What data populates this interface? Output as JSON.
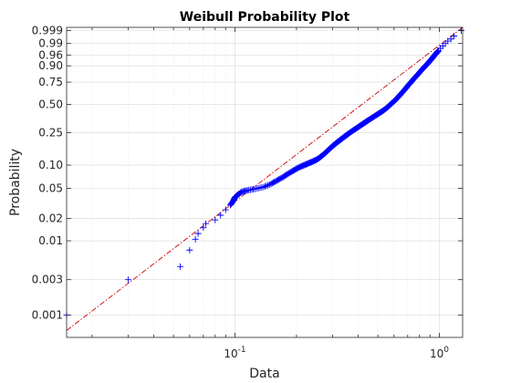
{
  "chart_data": {
    "type": "scatter",
    "title": "Weibull Probability Plot",
    "xlabel": "Data",
    "ylabel": "Probability",
    "x_scale": "log",
    "y_scale": "weibull",
    "xlim": [
      0.015,
      1.3
    ],
    "ylim": [
      0.0005,
      0.9995
    ],
    "grid": true,
    "x_ticks": [
      {
        "value": 0.1,
        "base": "10",
        "exp": "-1"
      },
      {
        "value": 1,
        "base": "10",
        "exp": "0"
      }
    ],
    "y_ticks": [
      {
        "value": 0.001,
        "label": "0.001"
      },
      {
        "value": 0.003,
        "label": "0.003"
      },
      {
        "value": 0.01,
        "label": "0.01"
      },
      {
        "value": 0.02,
        "label": "0.02"
      },
      {
        "value": 0.05,
        "label": "0.05"
      },
      {
        "value": 0.1,
        "label": "0.10"
      },
      {
        "value": 0.25,
        "label": "0.25"
      },
      {
        "value": 0.5,
        "label": "0.50"
      },
      {
        "value": 0.75,
        "label": "0.75"
      },
      {
        "value": 0.9,
        "label": "0.90"
      },
      {
        "value": 0.96,
        "label": "0.96"
      },
      {
        "value": 0.99,
        "label": "0.99"
      },
      {
        "value": 0.999,
        "label": "0.999"
      }
    ],
    "fit_line": {
      "x": [
        0.015,
        1.3
      ],
      "y": [
        0.00062,
        0.9995
      ]
    },
    "series": [
      {
        "marker": "+",
        "color": "#0000ff",
        "points": [
          [
            0.015,
            0.001
          ],
          [
            0.03,
            0.003
          ],
          [
            0.054,
            0.0045
          ],
          [
            0.06,
            0.0075
          ],
          [
            0.064,
            0.0105
          ],
          [
            0.066,
            0.0125
          ],
          [
            0.07,
            0.015
          ],
          [
            0.072,
            0.017
          ],
          [
            0.08,
            0.019
          ],
          [
            0.085,
            0.022
          ],
          [
            0.09,
            0.026
          ],
          [
            0.095,
            0.03
          ],
          [
            0.098,
            0.034
          ],
          [
            0.1,
            0.038
          ],
          [
            0.103,
            0.041
          ],
          [
            0.108,
            0.045
          ],
          [
            0.115,
            0.047
          ],
          [
            0.125,
            0.049
          ],
          [
            0.138,
            0.052
          ],
          [
            0.15,
            0.057
          ],
          [
            0.16,
            0.063
          ],
          [
            0.17,
            0.069
          ],
          [
            0.18,
            0.076
          ],
          [
            0.19,
            0.083
          ],
          [
            0.2,
            0.09
          ],
          [
            0.21,
            0.096
          ],
          [
            0.22,
            0.101
          ],
          [
            0.23,
            0.106
          ],
          [
            0.24,
            0.111
          ],
          [
            0.25,
            0.117
          ],
          [
            0.26,
            0.125
          ],
          [
            0.27,
            0.135
          ],
          [
            0.28,
            0.147
          ],
          [
            0.29,
            0.16
          ],
          [
            0.3,
            0.173
          ],
          [
            0.31,
            0.185
          ],
          [
            0.32,
            0.197
          ],
          [
            0.33,
            0.209
          ],
          [
            0.34,
            0.221
          ],
          [
            0.35,
            0.233
          ],
          [
            0.36,
            0.245
          ],
          [
            0.375,
            0.262
          ],
          [
            0.39,
            0.279
          ],
          [
            0.405,
            0.296
          ],
          [
            0.42,
            0.313
          ],
          [
            0.435,
            0.33
          ],
          [
            0.45,
            0.347
          ],
          [
            0.47,
            0.369
          ],
          [
            0.49,
            0.391
          ],
          [
            0.51,
            0.413
          ],
          [
            0.53,
            0.435
          ],
          [
            0.55,
            0.46
          ],
          [
            0.57,
            0.49
          ],
          [
            0.59,
            0.52
          ],
          [
            0.61,
            0.55
          ],
          [
            0.63,
            0.585
          ],
          [
            0.65,
            0.62
          ],
          [
            0.67,
            0.655
          ],
          [
            0.69,
            0.69
          ],
          [
            0.71,
            0.725
          ],
          [
            0.73,
            0.755
          ],
          [
            0.75,
            0.785
          ],
          [
            0.77,
            0.81
          ],
          [
            0.79,
            0.835
          ],
          [
            0.81,
            0.858
          ],
          [
            0.83,
            0.878
          ],
          [
            0.85,
            0.896
          ],
          [
            0.87,
            0.91
          ],
          [
            0.89,
            0.925
          ],
          [
            0.91,
            0.938
          ],
          [
            0.93,
            0.95
          ],
          [
            0.95,
            0.96
          ],
          [
            0.97,
            0.968
          ],
          [
            0.99,
            0.975
          ],
          [
            1.01,
            0.981
          ],
          [
            1.04,
            0.986
          ],
          [
            1.07,
            0.99
          ],
          [
            1.1,
            0.993
          ],
          [
            1.14,
            0.995
          ],
          [
            1.18,
            0.997
          ],
          [
            1.28,
            0.999
          ]
        ]
      }
    ]
  }
}
